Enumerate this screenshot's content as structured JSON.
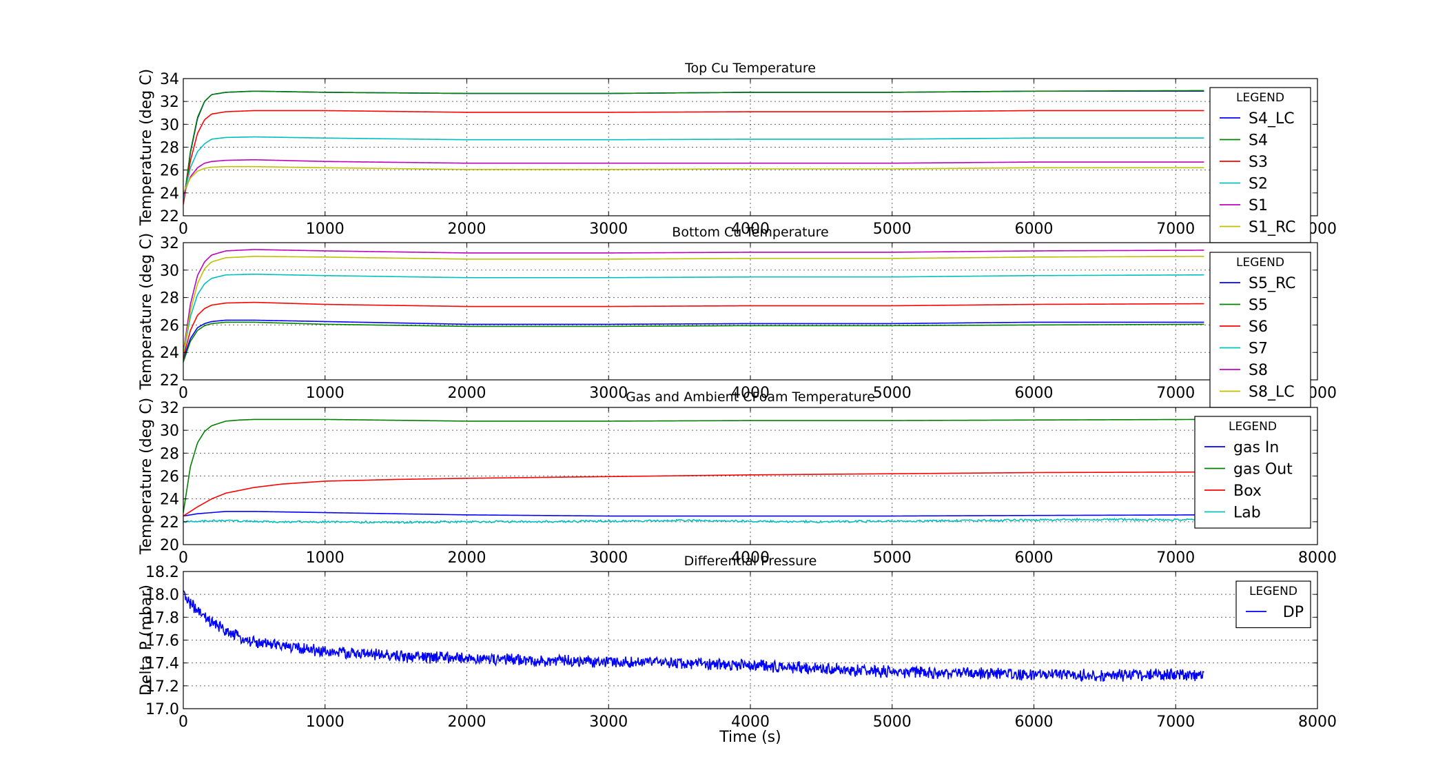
{
  "chart_data": [
    {
      "type": "line",
      "title": "Top Cu Temperature",
      "xlabel": "",
      "ylabel": "Temperature (deg C)",
      "xlim": [
        0,
        8000
      ],
      "ylim": [
        22,
        34
      ],
      "xticks": [
        0,
        1000,
        2000,
        3000,
        4000,
        5000,
        6000,
        7000,
        8000
      ],
      "yticks": [
        22,
        24,
        26,
        28,
        30,
        32,
        34
      ],
      "grid": true,
      "legend_title": "LEGEND",
      "legend_position": "right",
      "series": [
        {
          "name": "S4_LC",
          "color": "#0000ff",
          "x": [
            0,
            50,
            100,
            150,
            200,
            300,
            500,
            1000,
            2000,
            3000,
            4000,
            5000,
            6000,
            7200
          ],
          "values": [
            23.0,
            27.5,
            30.5,
            32.0,
            32.6,
            32.8,
            32.9,
            32.8,
            32.7,
            32.7,
            32.8,
            32.8,
            32.9,
            32.9
          ]
        },
        {
          "name": "S4",
          "color": "#008000",
          "x": [
            0,
            50,
            100,
            150,
            200,
            300,
            500,
            1000,
            2000,
            3000,
            4000,
            5000,
            6000,
            7200
          ],
          "values": [
            23.0,
            27.6,
            30.6,
            32.0,
            32.6,
            32.8,
            32.9,
            32.8,
            32.7,
            32.7,
            32.8,
            32.8,
            32.9,
            32.95
          ]
        },
        {
          "name": "S3",
          "color": "#ff0000",
          "x": [
            0,
            50,
            100,
            150,
            200,
            300,
            500,
            1000,
            2000,
            3000,
            4000,
            5000,
            6000,
            7200
          ],
          "values": [
            23.0,
            26.8,
            29.2,
            30.4,
            30.9,
            31.1,
            31.2,
            31.2,
            31.05,
            31.05,
            31.1,
            31.1,
            31.2,
            31.2
          ]
        },
        {
          "name": "S2",
          "color": "#00bfbf",
          "x": [
            0,
            50,
            100,
            150,
            200,
            300,
            500,
            1000,
            2000,
            3000,
            4000,
            5000,
            6000,
            7200
          ],
          "values": [
            23.5,
            26.2,
            27.6,
            28.3,
            28.7,
            28.85,
            28.9,
            28.8,
            28.65,
            28.65,
            28.7,
            28.7,
            28.8,
            28.8
          ]
        },
        {
          "name": "S1",
          "color": "#bf00bf",
          "x": [
            0,
            50,
            100,
            150,
            200,
            300,
            500,
            1000,
            2000,
            3000,
            4000,
            5000,
            6000,
            7200
          ],
          "values": [
            23.8,
            25.4,
            26.2,
            26.6,
            26.75,
            26.85,
            26.9,
            26.75,
            26.6,
            26.6,
            26.6,
            26.6,
            26.7,
            26.7
          ]
        },
        {
          "name": "S1_RC",
          "color": "#bfbf00",
          "x": [
            0,
            50,
            100,
            150,
            200,
            300,
            500,
            1000,
            2000,
            3000,
            4000,
            5000,
            6000,
            7200
          ],
          "values": [
            24.0,
            25.3,
            25.9,
            26.15,
            26.25,
            26.3,
            26.3,
            26.2,
            26.05,
            26.05,
            26.1,
            26.1,
            26.2,
            26.2
          ]
        }
      ]
    },
    {
      "type": "line",
      "title": "Bottom Cu Temperature",
      "xlabel": "",
      "ylabel": "Temperature (deg C)",
      "xlim": [
        0,
        8000
      ],
      "ylim": [
        22,
        32
      ],
      "xticks": [
        0,
        1000,
        2000,
        3000,
        4000,
        5000,
        6000,
        7000,
        8000
      ],
      "yticks": [
        22,
        24,
        26,
        28,
        30,
        32
      ],
      "grid": true,
      "legend_title": "LEGEND",
      "legend_position": "right",
      "series": [
        {
          "name": "S5_RC",
          "color": "#0000ff",
          "x": [
            0,
            50,
            100,
            150,
            200,
            300,
            500,
            1000,
            2000,
            3000,
            4000,
            5000,
            6000,
            7200
          ],
          "values": [
            23.5,
            25.0,
            25.8,
            26.1,
            26.25,
            26.35,
            26.35,
            26.25,
            26.05,
            26.05,
            26.1,
            26.1,
            26.2,
            26.2
          ]
        },
        {
          "name": "S5",
          "color": "#008000",
          "x": [
            0,
            50,
            100,
            150,
            200,
            300,
            500,
            1000,
            2000,
            3000,
            4000,
            5000,
            6000,
            7200
          ],
          "values": [
            23.3,
            24.8,
            25.6,
            25.95,
            26.1,
            26.2,
            26.2,
            26.05,
            25.9,
            25.9,
            25.95,
            25.95,
            26.0,
            26.05
          ]
        },
        {
          "name": "S6",
          "color": "#ff0000",
          "x": [
            0,
            50,
            100,
            150,
            200,
            300,
            500,
            1000,
            2000,
            3000,
            4000,
            5000,
            6000,
            7200
          ],
          "values": [
            23.6,
            25.6,
            26.7,
            27.2,
            27.45,
            27.6,
            27.65,
            27.5,
            27.35,
            27.35,
            27.4,
            27.4,
            27.5,
            27.55
          ]
        },
        {
          "name": "S7",
          "color": "#00bfbf",
          "x": [
            0,
            50,
            100,
            150,
            200,
            300,
            500,
            1000,
            2000,
            3000,
            4000,
            5000,
            6000,
            7200
          ],
          "values": [
            23.8,
            26.6,
            28.2,
            29.0,
            29.4,
            29.65,
            29.7,
            29.6,
            29.45,
            29.45,
            29.5,
            29.5,
            29.6,
            29.65
          ]
        },
        {
          "name": "S8",
          "color": "#bf00bf",
          "x": [
            0,
            50,
            100,
            150,
            200,
            300,
            500,
            1000,
            2000,
            3000,
            4000,
            5000,
            6000,
            7200
          ],
          "values": [
            24.0,
            27.5,
            29.6,
            30.6,
            31.1,
            31.4,
            31.5,
            31.4,
            31.25,
            31.25,
            31.3,
            31.3,
            31.4,
            31.45
          ]
        },
        {
          "name": "S8_LC",
          "color": "#bfbf00",
          "x": [
            0,
            50,
            100,
            150,
            200,
            300,
            500,
            1000,
            2000,
            3000,
            4000,
            5000,
            6000,
            7200
          ],
          "values": [
            23.9,
            27.0,
            29.0,
            30.1,
            30.6,
            30.9,
            31.0,
            30.95,
            30.8,
            30.8,
            30.85,
            30.85,
            30.95,
            31.0
          ]
        }
      ]
    },
    {
      "type": "line",
      "title": "Gas and Ambient CFoam Temperature",
      "xlabel": "",
      "ylabel": "Temperature (deg C)",
      "xlim": [
        0,
        8000
      ],
      "ylim": [
        20,
        32
      ],
      "xticks": [
        0,
        1000,
        2000,
        3000,
        4000,
        5000,
        6000,
        7000,
        8000
      ],
      "yticks": [
        20,
        22,
        24,
        26,
        28,
        30,
        32
      ],
      "grid": true,
      "legend_title": "LEGEND",
      "legend_position": "right",
      "series": [
        {
          "name": "gas In",
          "color": "#0000ff",
          "x": [
            0,
            100,
            300,
            500,
            1000,
            2000,
            3000,
            4000,
            5000,
            6000,
            7200
          ],
          "values": [
            22.5,
            22.7,
            22.9,
            22.9,
            22.8,
            22.6,
            22.5,
            22.5,
            22.5,
            22.55,
            22.6
          ]
        },
        {
          "name": "gas Out",
          "color": "#008000",
          "x": [
            0,
            50,
            100,
            150,
            200,
            300,
            400,
            500,
            1000,
            2000,
            3000,
            4000,
            5000,
            6000,
            7200
          ],
          "values": [
            22.8,
            26.8,
            28.9,
            29.9,
            30.4,
            30.8,
            30.9,
            30.95,
            30.95,
            30.8,
            30.8,
            30.85,
            30.85,
            30.9,
            30.95
          ]
        },
        {
          "name": "Box",
          "color": "#ff0000",
          "x": [
            0,
            100,
            200,
            300,
            500,
            700,
            1000,
            1500,
            2000,
            3000,
            4000,
            5000,
            6000,
            7200
          ],
          "values": [
            22.5,
            23.3,
            24.0,
            24.5,
            25.0,
            25.3,
            25.55,
            25.7,
            25.8,
            25.95,
            26.1,
            26.2,
            26.3,
            26.35
          ]
        },
        {
          "name": "Lab",
          "color": "#00bfbf",
          "x": [
            0,
            300,
            600,
            1000,
            1500,
            2000,
            2500,
            3000,
            3500,
            4000,
            4500,
            5000,
            5500,
            6000,
            6500,
            7200
          ],
          "values": [
            22.0,
            22.1,
            22.0,
            22.0,
            21.95,
            22.0,
            22.0,
            22.05,
            22.1,
            22.05,
            22.0,
            22.05,
            22.1,
            22.15,
            22.2,
            22.15
          ]
        }
      ]
    },
    {
      "type": "line",
      "title": "Differential Pressure",
      "xlabel": "Time (s)",
      "ylabel": "Delta P (mbar)",
      "xlim": [
        0,
        8000
      ],
      "ylim": [
        17.0,
        18.2
      ],
      "xticks": [
        0,
        1000,
        2000,
        3000,
        4000,
        5000,
        6000,
        7000,
        8000
      ],
      "yticks": [
        17.0,
        17.2,
        17.4,
        17.6,
        17.8,
        18.0,
        18.2
      ],
      "grid": true,
      "legend_title": "LEGEND",
      "legend_position": "upper right",
      "series": [
        {
          "name": "DP",
          "color": "#0000ff",
          "x": [
            0,
            100,
            200,
            300,
            400,
            500,
            700,
            1000,
            1500,
            2000,
            2500,
            3000,
            3500,
            4000,
            4500,
            5000,
            5500,
            6000,
            6500,
            7000,
            7200
          ],
          "values": [
            18.0,
            17.85,
            17.75,
            17.68,
            17.62,
            17.58,
            17.55,
            17.5,
            17.46,
            17.44,
            17.42,
            17.41,
            17.4,
            17.38,
            17.35,
            17.32,
            17.31,
            17.3,
            17.29,
            17.3,
            17.29
          ]
        }
      ]
    }
  ]
}
